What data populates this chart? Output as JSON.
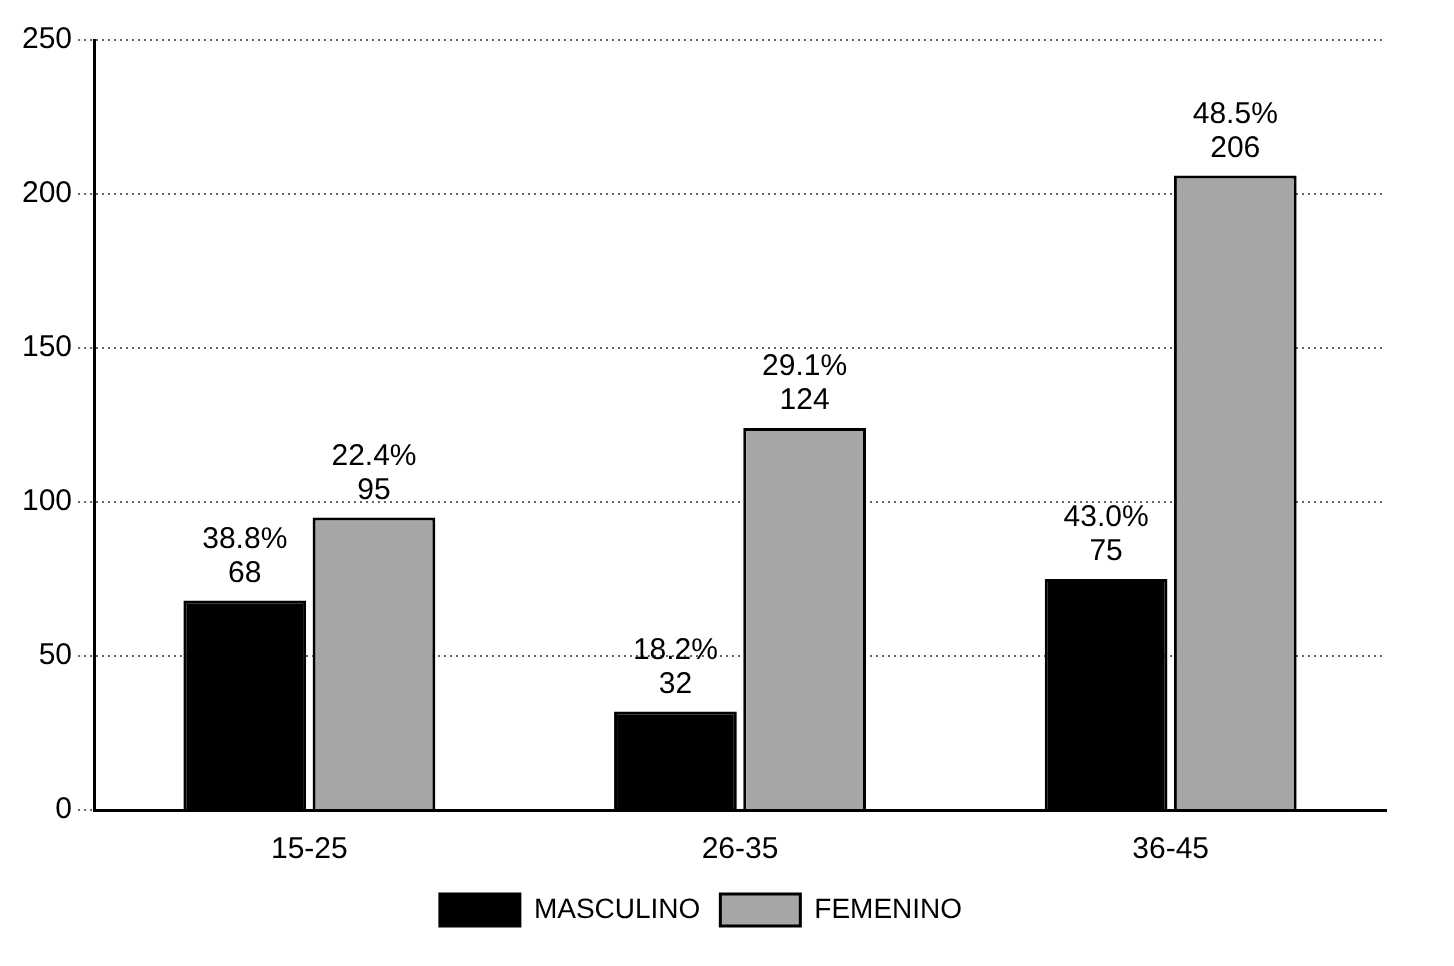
{
  "chart_data": {
    "type": "bar",
    "categories": [
      "15-25",
      "26-35",
      "36-45"
    ],
    "series": [
      {
        "name": "MASCULINO",
        "color": "#000000",
        "values": [
          68,
          32,
          75
        ],
        "value_labels": [
          "38.8%\n68",
          "18.2%\n32",
          "43.0%\n75"
        ]
      },
      {
        "name": "FEMENINO",
        "color": "#a6a6a6",
        "values": [
          95,
          124,
          206
        ],
        "value_labels": [
          "22.4%\n95",
          "29.1%\n124",
          "48.5%\n206"
        ]
      }
    ],
    "ylim": [
      0,
      250
    ],
    "yticks": [
      0,
      50,
      100,
      150,
      200,
      250
    ],
    "grid": "y",
    "legend": "bottom"
  }
}
